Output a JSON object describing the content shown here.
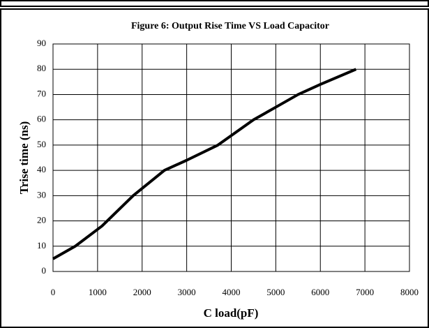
{
  "chart_data": {
    "type": "line",
    "title": "Figure 6: Output Rise Time VS Load Capacitor",
    "xlabel": "C load(pF)",
    "ylabel": "Trise time (ns)",
    "x": [
      0,
      500,
      1100,
      1800,
      2500,
      3000,
      3700,
      4500,
      5000,
      5500,
      6000,
      6800
    ],
    "series": [
      {
        "color": "#000000",
        "values": [
          5,
          10,
          18,
          30,
          40,
          44,
          50,
          60,
          65,
          70,
          74,
          80
        ]
      }
    ],
    "xlim": [
      0,
      8000
    ],
    "xticks": [
      0,
      1000,
      2000,
      3000,
      4000,
      5000,
      6000,
      7000,
      8000
    ],
    "ylim": [
      0,
      90
    ],
    "yticks": [
      0,
      10,
      20,
      30,
      40,
      50,
      60,
      70,
      80,
      90
    ],
    "grid": true
  }
}
